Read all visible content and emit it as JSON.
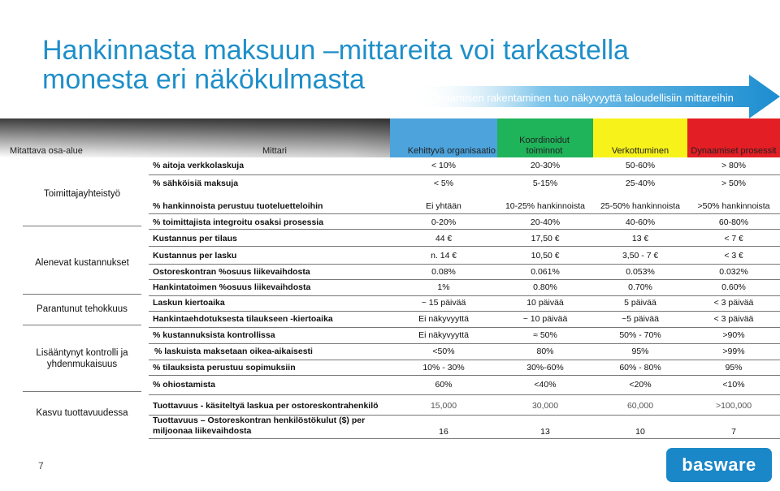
{
  "title": "Hankinnasta maksuun –mittareita voi tarkastella monesta eri näkökulmasta",
  "arrow_text": "Osaamisen rakentaminen tuo näkyvyyttä taloudellisiin mittareihin",
  "headers": {
    "col1": "Mitattava osa-alue",
    "col2": "Mittari",
    "col3": "Kehittyvä organisaatio",
    "col4": "Koordinoidut toiminnot",
    "col5": "Verkottuminen",
    "col6": "Dynaamiset prosessit"
  },
  "header_colors": {
    "col3": "#4da3dc",
    "col4": "#1fb35a",
    "col5": "#f7f21a",
    "col6": "#e31e24"
  },
  "groups": [
    "Toimittajayhteistyö",
    "Alenevat kustannukset",
    "Parantunut tehokkuus",
    "Lisääntynyt kontrolli ja yhdenmukaisuus",
    "Kasvu tuottavuudessa"
  ],
  "rows": [
    {
      "metric": "% aitoja verkkolaskuja",
      "v1": "< 10%",
      "v2": "20-30%",
      "v3": "50-60%",
      "v4": "> 80%"
    },
    {
      "metric": "% sähköisiä maksuja",
      "v1": "< 5%",
      "v2": "5-15%",
      "v3": "25-40%",
      "v4": "> 50%"
    },
    {
      "metric": "% hankinnoista perustuu tuoteluetteloihin",
      "v1": "Ei yhtään",
      "v2": "10-25% hankinnoista",
      "v3": "25-50% hankinnoista",
      "v4": ">50% hankinnoista"
    },
    {
      "metric": "% toimittajista integroitu osaksi prosessia",
      "v1": "0-20%",
      "v2": "20-40%",
      "v3": "40-60%",
      "v4": "60-80%"
    },
    {
      "metric": "Kustannus per tilaus",
      "v1": "44",
      "v2": "17,50",
      "v3": "13",
      "v4": "< 7"
    },
    {
      "metric": "Kustannus per lasku",
      "v1": "n. 14",
      "v2": "10,50",
      "v3": "3,50 - 7",
      "v4": "< 3"
    },
    {
      "metric": "Ostoreskontran %osuus liikevaihdosta",
      "v1": "0.08%",
      "v2": "0.061%",
      "v3": "0.053%",
      "v4": "0.032%"
    },
    {
      "metric": "Hankintatoimen %osuus liikevaihdosta",
      "v1": "1%",
      "v2": "0.80%",
      "v3": "0.70%",
      "v4": "0.60%"
    },
    {
      "metric": "Laskun kiertoaika",
      "v1": "~ 15 päivää",
      "v2": "10 päivää",
      "v3": "5 päivää",
      "v4": "< 3 päivää"
    },
    {
      "metric": "Hankintaehdotuksesta tilaukseen -kiertoaika",
      "v1": "Ei näkyvyyttä",
      "v2": "~ 10 päivää",
      "v3": "~5 päivää",
      "v4": "< 3 päivää"
    },
    {
      "metric": "% kustannuksista kontrollissa",
      "v1": "Ei näkyvyyttä",
      "v2": "≈ 50%",
      "v3": "50% - 70%",
      "v4": ">90%"
    },
    {
      "metric": "% laskuista maksetaan oikea-aikaisesti",
      "v1": "<50%",
      "v2": "80%",
      "v3": "95%",
      "v4": ">99%"
    },
    {
      "metric": "% tilauksista perustuu sopimuksiin",
      "v1": "10% - 30%",
      "v2": "30%-60%",
      "v3": "60% - 80%",
      "v4": "95%"
    },
    {
      "metric": "% ohiostamista",
      "v1": "60%",
      "v2": "<40%",
      "v3": "<20%",
      "v4": "<10%"
    },
    {
      "metric": "Tuottavuus -  käsiteltyä laskua per ostoreskontrahenkilö",
      "v1": "15,000",
      "v2": "30,000",
      "v3": "60,000",
      "v4": ">100,000"
    },
    {
      "metric": "Tuottavuus – Ostoreskontran henkilöstökulut   ($) per miljoonaa liikevaihdosta",
      "v1": "16",
      "v2": "13",
      "v3": "10",
      "v4": "7"
    }
  ],
  "euro_symbol": "€",
  "page_number": "7",
  "logo_text": "basware"
}
